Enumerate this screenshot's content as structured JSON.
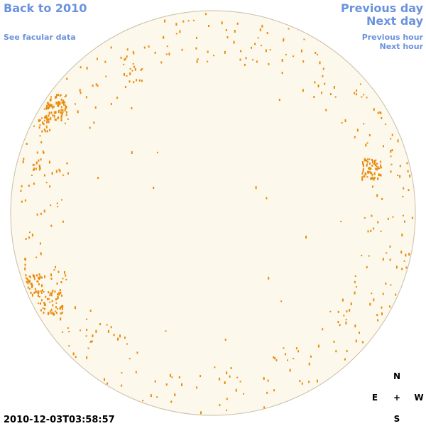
{
  "header": {
    "back_link": "Back to 2010",
    "facular_link": "See facular data",
    "prev_day": "Previous day",
    "next_day": "Next day",
    "prev_hour": "Previous hour",
    "next_hour": "Next hour"
  },
  "timestamp": "2010-12-03T03:58:57",
  "compass": {
    "north": "N",
    "east": "E",
    "center": "+",
    "west": "W",
    "south": "S"
  }
}
